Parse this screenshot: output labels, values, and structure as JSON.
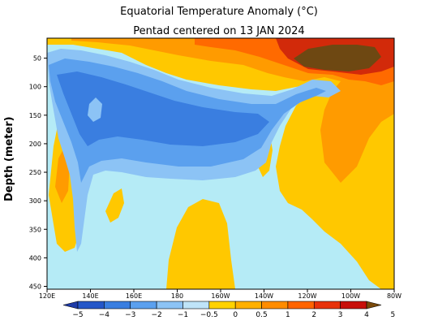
{
  "chart_data": {
    "type": "heatmap",
    "title": "Equatorial Temperature Anomaly (°C)",
    "subtitle": "Pentad centered on 13 JAN 2024",
    "ylabel": "Depth (meter)",
    "xlabel": "",
    "x_ticks": [
      "120E",
      "140E",
      "160E",
      "180",
      "160W",
      "140W",
      "120W",
      "100W",
      "80W"
    ],
    "x_tick_lons": [
      120,
      140,
      160,
      180,
      200,
      220,
      240,
      260,
      280
    ],
    "xlim": [
      120,
      280
    ],
    "y_ticks": [
      50,
      100,
      150,
      200,
      250,
      300,
      350,
      400,
      450
    ],
    "ylim": [
      455,
      15
    ],
    "colorbar": {
      "labels": [
        "−5",
        "−4",
        "−3",
        "−2",
        "−1",
        "−0.5",
        "0",
        "0.5",
        "1",
        "2",
        "3",
        "4",
        "5"
      ],
      "colors": [
        "#1e3ba8",
        "#2456c8",
        "#3a7ee0",
        "#5ba0ee",
        "#8cc3f5",
        "#bfe4f8",
        "#ffd200",
        "#ffb000",
        "#ff8c00",
        "#ff6400",
        "#e8320a",
        "#c80f0a",
        "#7a4a0a"
      ]
    },
    "levels": {
      "deep_blue": "#3a7ee0",
      "mid_blue": "#5ba0ee",
      "light_blue": "#8cc3f5",
      "pale_blue": "#b5ebf6",
      "yellow": "#ffc800",
      "orange": "#ff9b00",
      "dark_orange": "#ff6a00",
      "red": "#d22a0a",
      "brown": "#6e4812"
    }
  }
}
